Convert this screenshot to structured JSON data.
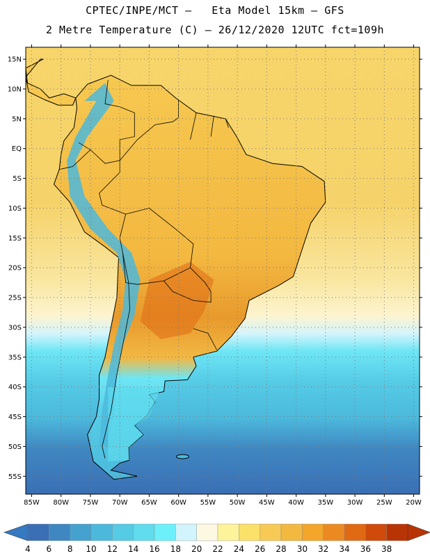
{
  "header": {
    "title_line1": "CPTEC/INPE/MCT –   Eta Model 15km – GFS",
    "title_line2": "2 Metre Temperature (C) – 26/12/2020 12UTC fct=109h"
  },
  "map": {
    "lon_range": [
      -86,
      -19
    ],
    "lat_range": [
      -58,
      17
    ],
    "lat_ticks": [
      {
        "value": 15,
        "label": "15N"
      },
      {
        "value": 10,
        "label": "10N"
      },
      {
        "value": 5,
        "label": "5N"
      },
      {
        "value": 0,
        "label": "EQ"
      },
      {
        "value": -5,
        "label": "5S"
      },
      {
        "value": -10,
        "label": "10S"
      },
      {
        "value": -15,
        "label": "15S"
      },
      {
        "value": -20,
        "label": "20S"
      },
      {
        "value": -25,
        "label": "25S"
      },
      {
        "value": -30,
        "label": "30S"
      },
      {
        "value": -35,
        "label": "35S"
      },
      {
        "value": -40,
        "label": "40S"
      },
      {
        "value": -45,
        "label": "45S"
      },
      {
        "value": -50,
        "label": "50S"
      },
      {
        "value": -55,
        "label": "55S"
      }
    ],
    "lon_ticks": [
      {
        "value": -85,
        "label": "85W"
      },
      {
        "value": -80,
        "label": "80W"
      },
      {
        "value": -75,
        "label": "75W"
      },
      {
        "value": -70,
        "label": "70W"
      },
      {
        "value": -65,
        "label": "65W"
      },
      {
        "value": -60,
        "label": "60W"
      },
      {
        "value": -55,
        "label": "55W"
      },
      {
        "value": -50,
        "label": "50W"
      },
      {
        "value": -45,
        "label": "45W"
      },
      {
        "value": -40,
        "label": "40W"
      },
      {
        "value": -35,
        "label": "35W"
      },
      {
        "value": -30,
        "label": "30W"
      },
      {
        "value": -25,
        "label": "25W"
      },
      {
        "value": -20,
        "label": "20W"
      }
    ]
  },
  "legend": {
    "labels": [
      "4",
      "6",
      "8",
      "10",
      "12",
      "14",
      "16",
      "18",
      "20",
      "22",
      "24",
      "26",
      "28",
      "30",
      "32",
      "34",
      "36",
      "38"
    ],
    "colors": [
      "#3a6fb5",
      "#3f87c1",
      "#45a2cf",
      "#4cb9dc",
      "#55cbe6",
      "#60dcee",
      "#6ef0fa",
      "#d2f4fc",
      "#fdf8e2",
      "#fdf39a",
      "#fbe06a",
      "#f6ca55",
      "#f2b83f",
      "#f4a62a",
      "#ec8a22",
      "#e06a14",
      "#cf4a0b",
      "#b83405"
    ],
    "below_color": "#3579c0",
    "above_color": "#b83405"
  }
}
